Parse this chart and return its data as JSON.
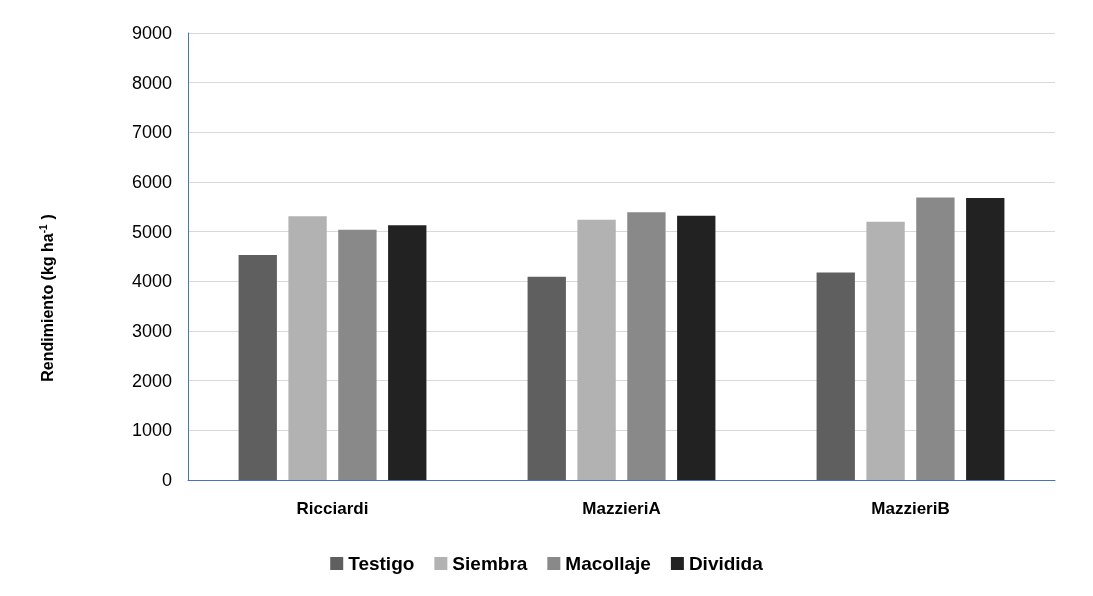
{
  "chart_data": {
    "type": "bar",
    "ylabel": "Rendimiento (kg ha$^{-1}$)",
    "categories": [
      "Ricciardi",
      "MazzieriA",
      "MazzieriB"
    ],
    "series": [
      {
        "name": "Testigo",
        "color": "#5f5f5f",
        "values": [
          4530,
          4090,
          4180
        ]
      },
      {
        "name": "Siembra",
        "color": "#b2b2b2",
        "values": [
          5310,
          5240,
          5200
        ]
      },
      {
        "name": "Macollaje",
        "color": "#898989",
        "values": [
          5040,
          5390,
          5690
        ]
      },
      {
        "name": "Dividida",
        "color": "#222222",
        "values": [
          5130,
          5320,
          5680
        ]
      }
    ],
    "ylim": [
      0,
      9000
    ],
    "yticks": [
      0,
      1000,
      2000,
      3000,
      4000,
      5000,
      6000,
      7000,
      8000,
      9000
    ],
    "grid": "y",
    "legend": "bottom"
  }
}
